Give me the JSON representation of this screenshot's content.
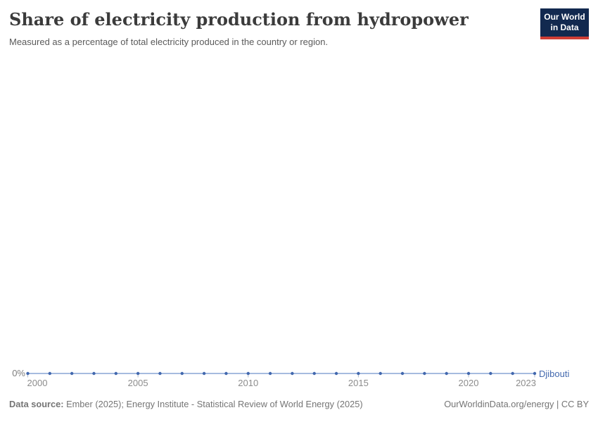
{
  "header": {
    "title": "Share of electricity production from hydropower",
    "subtitle": "Measured as a percentage of total electricity produced in the country or region.",
    "logo_line1": "Our World",
    "logo_line2": "in Data"
  },
  "chart_data": {
    "type": "line",
    "title": "Share of electricity production from hydropower",
    "x": [
      2000,
      2001,
      2002,
      2003,
      2004,
      2005,
      2006,
      2007,
      2008,
      2009,
      2010,
      2011,
      2012,
      2013,
      2014,
      2015,
      2016,
      2017,
      2018,
      2019,
      2020,
      2021,
      2022,
      2023
    ],
    "series": [
      {
        "name": "Djibouti",
        "color": "#4268ae",
        "values": [
          0,
          0,
          0,
          0,
          0,
          0,
          0,
          0,
          0,
          0,
          0,
          0,
          0,
          0,
          0,
          0,
          0,
          0,
          0,
          0,
          0,
          0,
          0,
          0
        ]
      }
    ],
    "unit": "%",
    "x_ticks": [
      2000,
      2005,
      2010,
      2015,
      2020,
      2023
    ],
    "x_tick_labels": [
      "2000",
      "2005",
      "2010",
      "2015",
      "2020",
      "2023"
    ],
    "y_tick_labels": [
      "0%"
    ],
    "y_min": 0,
    "grid": false,
    "legend_position": "line-end-label"
  },
  "footer": {
    "source_label": "Data source:",
    "source_text": "Ember (2025); Energy Institute - Statistical Review of World Energy (2025)",
    "credit": "OurWorldinData.org/energy | CC BY"
  },
  "colors": {
    "line": "#a6bbdf",
    "marker": "#4268ae",
    "tick": "#b0bac9",
    "axis_text": "#8c8c8c",
    "entity_label": "#4268ae",
    "logo_bg": "#12294f",
    "logo_stripe": "#cf3e35"
  }
}
